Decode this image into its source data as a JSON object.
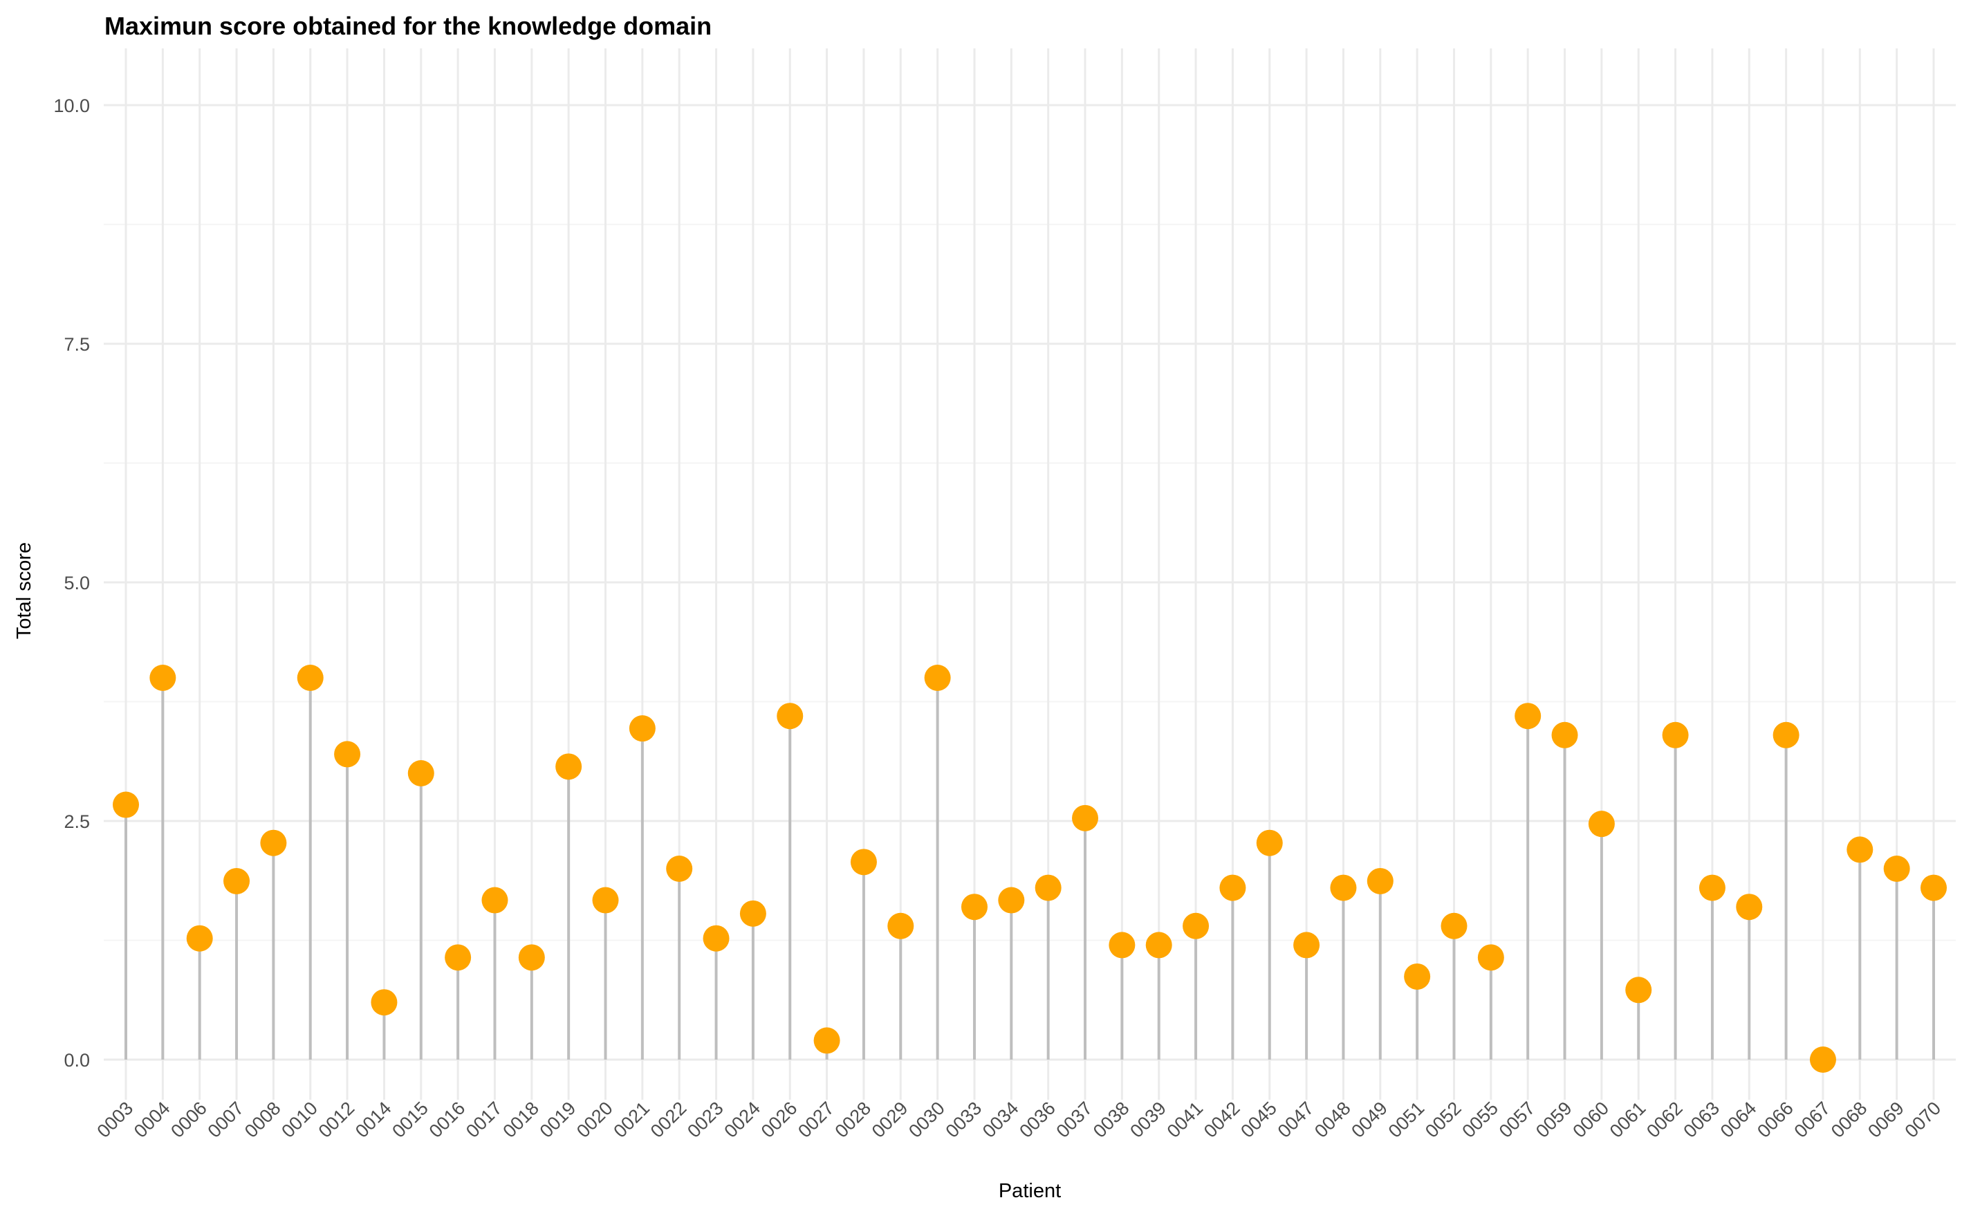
{
  "chart_data": {
    "type": "lollipop",
    "title": "Maximun score obtained for the knowledge domain",
    "xlabel": "Patient",
    "ylabel": "Total score",
    "ylim": [
      -0.6,
      10.6
    ],
    "yticks": [
      "0.0",
      "2.5",
      "5.0",
      "7.5",
      "10.0"
    ],
    "grid": true,
    "legend": "none",
    "categories": [
      "0003",
      "0004",
      "0006",
      "0007",
      "0008",
      "0010",
      "0012",
      "0014",
      "0015",
      "0016",
      "0017",
      "0018",
      "0019",
      "0020",
      "0021",
      "0022",
      "0023",
      "0024",
      "0026",
      "0027",
      "0028",
      "0029",
      "0030",
      "0033",
      "0034",
      "0036",
      "0037",
      "0038",
      "0039",
      "0041",
      "0042",
      "0045",
      "0047",
      "0048",
      "0049",
      "0051",
      "0052",
      "0055",
      "0057",
      "0059",
      "0060",
      "0061",
      "0062",
      "0063",
      "0064",
      "0066",
      "0067",
      "0068",
      "0069",
      "0070"
    ],
    "values": [
      2.67,
      4.0,
      1.27,
      1.87,
      2.27,
      4.0,
      3.2,
      0.6,
      3.0,
      1.07,
      1.67,
      1.07,
      3.07,
      1.67,
      3.47,
      2.0,
      1.27,
      1.53,
      3.6,
      0.2,
      2.07,
      1.4,
      4.0,
      1.6,
      1.67,
      1.8,
      2.53,
      1.2,
      1.2,
      1.4,
      1.8,
      2.27,
      1.2,
      1.8,
      1.87,
      0.87,
      1.4,
      1.07,
      3.6,
      3.4,
      2.47,
      0.73,
      3.4,
      1.8,
      1.6,
      3.4,
      0.0,
      2.2,
      2.0,
      1.8
    ],
    "colors": {
      "point": "#FFA500",
      "stem": "#BEBEBE",
      "grid_major": "#EBEBEB",
      "grid_minor": "#F4F4F4"
    }
  }
}
